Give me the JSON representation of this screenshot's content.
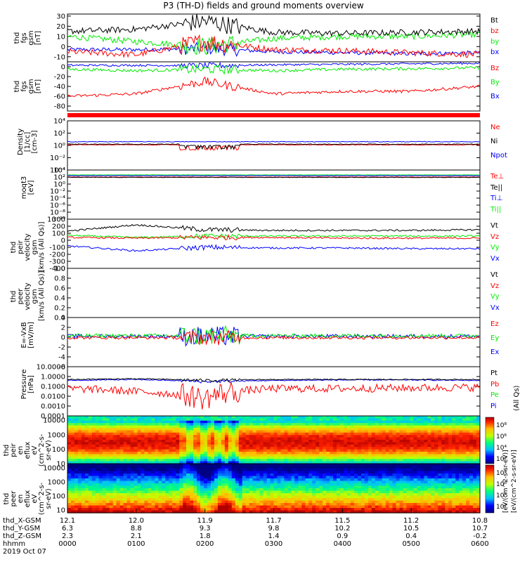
{
  "title": "P3 (TH-D) fields and ground moments overview",
  "colors": {
    "black": "#000000",
    "red": "#ff0000",
    "green": "#00ee00",
    "blue": "#0000ff",
    "thermal_blue": "#0000ff"
  },
  "panels": [
    {
      "id": "fgs",
      "ylabel": "thd\nfgs\ngsm\n[nT]",
      "ylim": [
        -15,
        32
      ],
      "ticks": [
        "30",
        "20",
        "10",
        "0",
        "-10"
      ],
      "tick_values": [
        30,
        20,
        10,
        0,
        -10
      ],
      "legend": [
        {
          "label": "Bt",
          "color": "black"
        },
        {
          "label": "bz",
          "color": "red"
        },
        {
          "label": "by",
          "color": "green"
        },
        {
          "label": "bx",
          "color": "blue"
        }
      ]
    },
    {
      "id": "fgs2",
      "ylabel": "thd\nfgs\ngsm\n[nT]",
      "ylim": [
        -90,
        10
      ],
      "ticks": [
        "0",
        "-20",
        "-40",
        "-60",
        "-80"
      ],
      "tick_values": [
        0,
        -20,
        -40,
        -60,
        -80
      ],
      "legend": [
        {
          "label": "Bz",
          "color": "red"
        },
        {
          "label": "By",
          "color": "green"
        },
        {
          "label": "Bx",
          "color": "blue"
        }
      ]
    },
    {
      "id": "density",
      "ylabel": "Density\n[1/cc]\n[cm-3]",
      "ylim": [
        -4,
        4
      ],
      "ticks": [
        "10⁴",
        "10²",
        "10⁰",
        "10⁻²",
        "10⁻⁴"
      ],
      "tick_values": [
        4,
        2,
        0,
        -2,
        -4
      ],
      "legend": [
        {
          "label": "Ne",
          "color": "red"
        },
        {
          "label": "Ni",
          "color": "black"
        },
        {
          "label": "Npot",
          "color": "blue"
        }
      ]
    },
    {
      "id": "temp",
      "ylabel": "moqt3\n[eV]",
      "ylim": [
        -10,
        4
      ],
      "ticks": [
        "10⁴",
        "10²",
        "10⁰",
        "10⁻²",
        "10⁻⁴",
        "10⁻⁶",
        "10⁻⁸",
        "10⁻¹⁰"
      ],
      "tick_values": [
        4,
        2,
        0,
        -2,
        -4,
        -6,
        -8,
        -10
      ],
      "legend": [
        {
          "label": "Te⊥",
          "color": "red"
        },
        {
          "label": "Te||",
          "color": "black"
        },
        {
          "label": "Ti⊥",
          "color": "blue"
        },
        {
          "label": "Ti||",
          "color": "green"
        }
      ]
    },
    {
      "id": "vi",
      "ylabel": "thd\npeir\nvelocity\ngsm\n[km/s (All Qs)]",
      "ylim": [
        -400,
        300
      ],
      "ticks": [
        "300",
        "200",
        "100",
        "0",
        "-100",
        "-200",
        "-300",
        "-400"
      ],
      "tick_values": [
        300,
        200,
        100,
        0,
        -100,
        -200,
        -300,
        -400
      ],
      "legend": [
        {
          "label": "Vt",
          "color": "black"
        },
        {
          "label": "Vz",
          "color": "red"
        },
        {
          "label": "Vy",
          "color": "green"
        },
        {
          "label": "Vx",
          "color": "blue"
        }
      ]
    },
    {
      "id": "ve",
      "ylabel": "thd\npeer\nvelocity\ngsm\n[km/s (All Qs)]",
      "ylim": [
        0,
        1
      ],
      "ticks": [
        "1.0",
        "0.8",
        "0.6",
        "0.4",
        "0.2",
        "0.0"
      ],
      "tick_values": [
        1,
        0.8,
        0.6,
        0.4,
        0.2,
        0
      ],
      "legend": [
        {
          "label": "Vt",
          "color": "black"
        },
        {
          "label": "Vz",
          "color": "red"
        },
        {
          "label": "Vy",
          "color": "green"
        },
        {
          "label": "Vx",
          "color": "blue"
        }
      ]
    },
    {
      "id": "efield",
      "ylabel": "E=-VxB\n[mV/m]",
      "ylim": [
        -6,
        4
      ],
      "ticks": [
        "4",
        "2",
        "0",
        "-2",
        "-4",
        "-6"
      ],
      "tick_values": [
        4,
        2,
        0,
        -2,
        -4,
        -6
      ],
      "legend": [
        {
          "label": "Ez",
          "color": "red"
        },
        {
          "label": "Ey",
          "color": "green"
        },
        {
          "label": "Ex",
          "color": "blue"
        }
      ]
    },
    {
      "id": "pressure",
      "ylabel": "Pressure\n[nPa]",
      "ylim": [
        -4,
        1
      ],
      "ticks": [
        "10.0000",
        "1.0000",
        "0.1000",
        "0.0100",
        "0.0010",
        "0.0001"
      ],
      "tick_values": [
        1,
        0,
        -1,
        -2,
        -3,
        -4
      ],
      "legend": [
        {
          "label": "Pt",
          "color": "black"
        },
        {
          "label": "Pb",
          "color": "red"
        },
        {
          "label": "Pe",
          "color": "green"
        },
        {
          "label": "Pi",
          "color": "blue"
        }
      ],
      "right_note": "(All Qs)"
    },
    {
      "id": "ion_spec",
      "ylabel": "thd\npeir\nen\neflux\neV\n(cm^2-s-\nsr-eV)",
      "ylim": [
        1,
        4.3
      ],
      "ticks": [
        "10000",
        "1000",
        "100",
        "10"
      ],
      "tick_values": [
        4,
        3,
        2,
        1
      ]
    },
    {
      "id": "ele_spec",
      "ylabel": "thd\npeer\nen\neflux\neV\n(cm^2-s-\nsr-eV)",
      "ylim": [
        0.8,
        4.3
      ],
      "ticks": [
        "10000",
        "1000",
        "100",
        "10"
      ],
      "tick_values": [
        4,
        3,
        2,
        1
      ]
    }
  ],
  "colorbar": {
    "ticks_top": [
      "10⁸",
      "10⁶",
      "10⁴",
      "10²"
    ],
    "ticks_bottom": [
      "10⁸",
      "10⁶",
      "10⁴",
      "10²"
    ],
    "label": "[eV/(cm^2-s-sr-eV)]",
    "label2": "[eV/(cm^2-s-sr-eV)]"
  },
  "xaxis": {
    "rows": [
      {
        "label": "thd_X-GSM",
        "values": [
          "12.1",
          "12.0",
          "11.9",
          "11.7",
          "11.5",
          "11.2",
          "10.8"
        ]
      },
      {
        "label": "thd_Y-GSM",
        "values": [
          "6.3",
          "8.8",
          "9.3",
          "9.8",
          "10.2",
          "10.5",
          "10.7"
        ]
      },
      {
        "label": "thd_Z-GSM",
        "values": [
          "2.3",
          "2.1",
          "1.8",
          "1.4",
          "0.9",
          "0.4",
          "-0.2"
        ]
      },
      {
        "label": "hhmm",
        "values": [
          "0000",
          "0100",
          "0200",
          "0300",
          "0400",
          "0500",
          "0600"
        ]
      }
    ],
    "date": "2019 Oct 07"
  },
  "chart_data": {
    "type": "line",
    "title": "P3 (TH-D) fields and ground moments overview",
    "x": [
      "0000",
      "0100",
      "0200",
      "0300",
      "0400",
      "0500",
      "0600"
    ],
    "xlabel": "hhmm (2019 Oct 07)",
    "series": [
      {
        "name": "Bt",
        "panel": "fgs",
        "values": [
          15,
          17,
          25,
          14,
          13,
          14,
          15
        ]
      },
      {
        "name": "bz",
        "panel": "fgs",
        "values": [
          -5,
          -8,
          5,
          -3,
          -4,
          -6,
          -8
        ]
      },
      {
        "name": "by",
        "panel": "fgs",
        "values": [
          10,
          5,
          0,
          8,
          10,
          10,
          12
        ]
      },
      {
        "name": "bx",
        "panel": "fgs",
        "values": [
          -3,
          -3,
          -2,
          -5,
          -6,
          -7,
          -6
        ]
      },
      {
        "name": "Bz",
        "panel": "fgs2",
        "values": [
          -60,
          -55,
          -30,
          -55,
          -50,
          -50,
          -40
        ]
      },
      {
        "name": "By",
        "panel": "fgs2",
        "values": [
          -5,
          -8,
          -5,
          -8,
          -5,
          -4,
          -2
        ]
      },
      {
        "name": "Bx",
        "panel": "fgs2",
        "values": [
          3,
          3,
          2,
          4,
          5,
          6,
          7
        ]
      },
      {
        "name": "Vt",
        "panel": "vi",
        "values": [
          130,
          220,
          150,
          140,
          140,
          140,
          150
        ]
      },
      {
        "name": "Vz",
        "panel": "vi",
        "values": [
          40,
          30,
          40,
          40,
          30,
          30,
          30
        ]
      },
      {
        "name": "Vy",
        "panel": "vi",
        "values": [
          70,
          40,
          60,
          60,
          60,
          60,
          60
        ]
      },
      {
        "name": "Vx",
        "panel": "vi",
        "values": [
          -80,
          -150,
          -100,
          -110,
          -110,
          -120,
          -120
        ]
      },
      {
        "name": "Pt",
        "panel": "pressure",
        "values": [
          0.5,
          0.6,
          0.4,
          0.5,
          0.5,
          0.5,
          0.5
        ]
      },
      {
        "name": "Pb",
        "panel": "pressure",
        "values": [
          0.06,
          0.03,
          0.005,
          0.06,
          0.06,
          0.07,
          0.08
        ]
      },
      {
        "name": "Pi",
        "panel": "pressure",
        "values": [
          0.4,
          0.5,
          0.3,
          0.4,
          0.45,
          0.45,
          0.4
        ]
      }
    ]
  }
}
